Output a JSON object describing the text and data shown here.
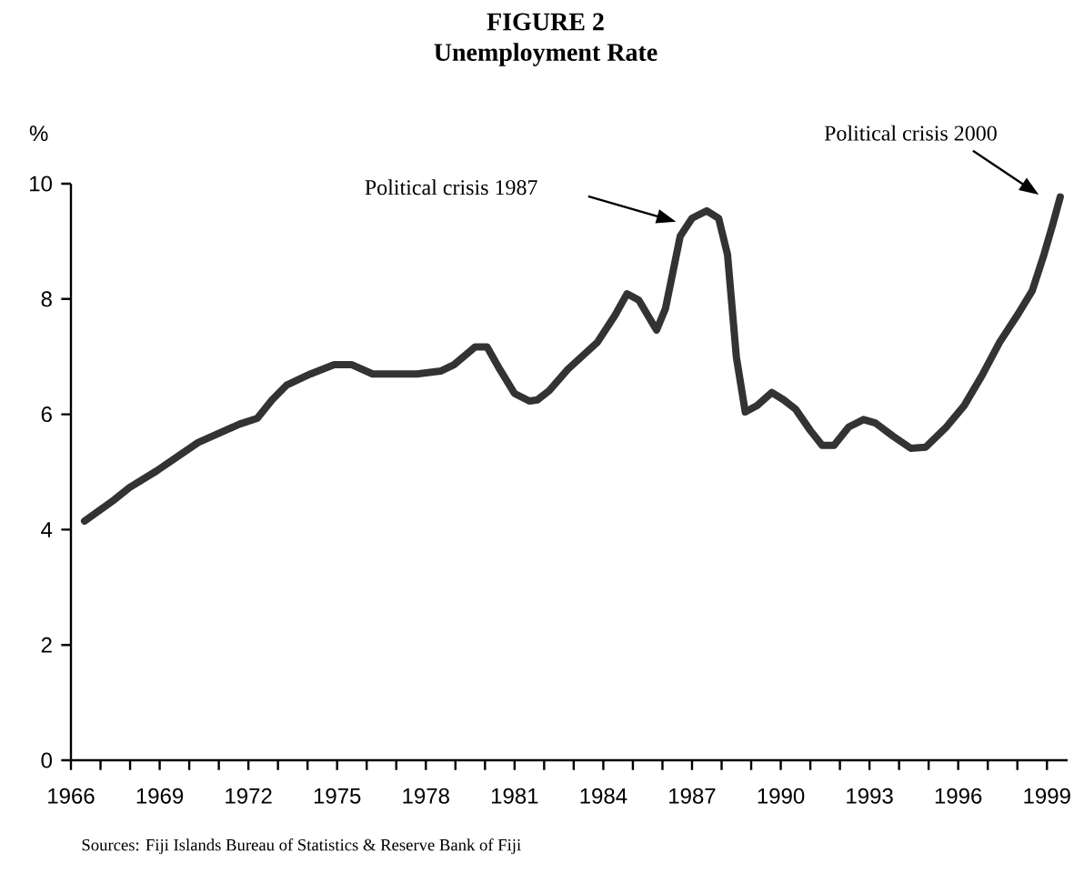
{
  "chart_data": {
    "type": "line",
    "title": "FIGURE 2",
    "subtitle": "Unemployment Rate",
    "ylabel": "%",
    "x": [
      1966.46,
      1967.47,
      1967.98,
      1968.9,
      1970.3,
      1971.7,
      1972.3,
      1972.8,
      1973.3,
      1974.1,
      1974.9,
      1975.5,
      1976.2,
      1977.7,
      1978.5,
      1978.95,
      1979.67,
      1980.07,
      1980.5,
      1981.0,
      1981.5,
      1981.77,
      1982.17,
      1982.8,
      1983.8,
      1984.4,
      1984.8,
      1985.2,
      1985.8,
      1986.1,
      1986.6,
      1987.0,
      1987.5,
      1987.9,
      1988.2,
      1988.5,
      1988.8,
      1989.2,
      1989.7,
      1990.1,
      1990.5,
      1991.0,
      1991.4,
      1991.8,
      1992.3,
      1992.8,
      1993.2,
      1993.8,
      1994.4,
      1994.9,
      1995.6,
      1996.2,
      1996.8,
      1997.4,
      1998.0,
      1998.5,
      1998.9,
      1999.2,
      1999.45
    ],
    "series": [
      {
        "color": "#333333",
        "values": [
          4.15,
          4.52,
          4.73,
          5.02,
          5.51,
          5.83,
          5.93,
          6.25,
          6.51,
          6.7,
          6.86,
          6.86,
          6.7,
          6.7,
          6.75,
          6.86,
          7.17,
          7.17,
          6.78,
          6.36,
          6.23,
          6.25,
          6.41,
          6.78,
          7.25,
          7.72,
          8.09,
          7.98,
          7.46,
          7.83,
          9.09,
          9.4,
          9.53,
          9.4,
          8.77,
          6.99,
          6.04,
          6.15,
          6.38,
          6.25,
          6.09,
          5.72,
          5.46,
          5.46,
          5.78,
          5.91,
          5.85,
          5.62,
          5.41,
          5.43,
          5.78,
          6.15,
          6.67,
          7.25,
          7.72,
          8.14,
          8.77,
          9.3,
          9.77
        ]
      }
    ],
    "xlim": [
      1966,
      1999.7
    ],
    "ylim": [
      0,
      10
    ],
    "xticks": [
      1966,
      {
        "value": 1967,
        "label": null
      },
      {
        "value": 1968,
        "label": null
      },
      1969,
      {
        "value": 1970,
        "label": null
      },
      {
        "value": 1971,
        "label": null
      },
      1972,
      {
        "value": 1973,
        "label": null
      },
      {
        "value": 1974,
        "label": null
      },
      1975,
      {
        "value": 1976,
        "label": null
      },
      {
        "value": 1977,
        "label": null
      },
      1978,
      {
        "value": 1979,
        "label": null
      },
      {
        "value": 1980,
        "label": null
      },
      1981,
      {
        "value": 1982,
        "label": null
      },
      {
        "value": 1983,
        "label": null
      },
      1984,
      {
        "value": 1985,
        "label": null
      },
      {
        "value": 1986,
        "label": null
      },
      1987,
      {
        "value": 1988,
        "label": null
      },
      {
        "value": 1989,
        "label": null
      },
      1990,
      {
        "value": 1991,
        "label": null
      },
      {
        "value": 1992,
        "label": null
      },
      1993,
      {
        "value": 1994,
        "label": null
      },
      {
        "value": 1995,
        "label": null
      },
      1996,
      {
        "value": 1997,
        "label": null
      },
      {
        "value": 1998,
        "label": null
      },
      1999
    ],
    "yticks": [
      0,
      2,
      4,
      6,
      8,
      10
    ],
    "annotations": [
      "Political crisis 1987",
      "Political crisis 2000",
      "Sources: Fiji Islands Bureau of Statistics & Reserve Bank of Fiji"
    ]
  }
}
